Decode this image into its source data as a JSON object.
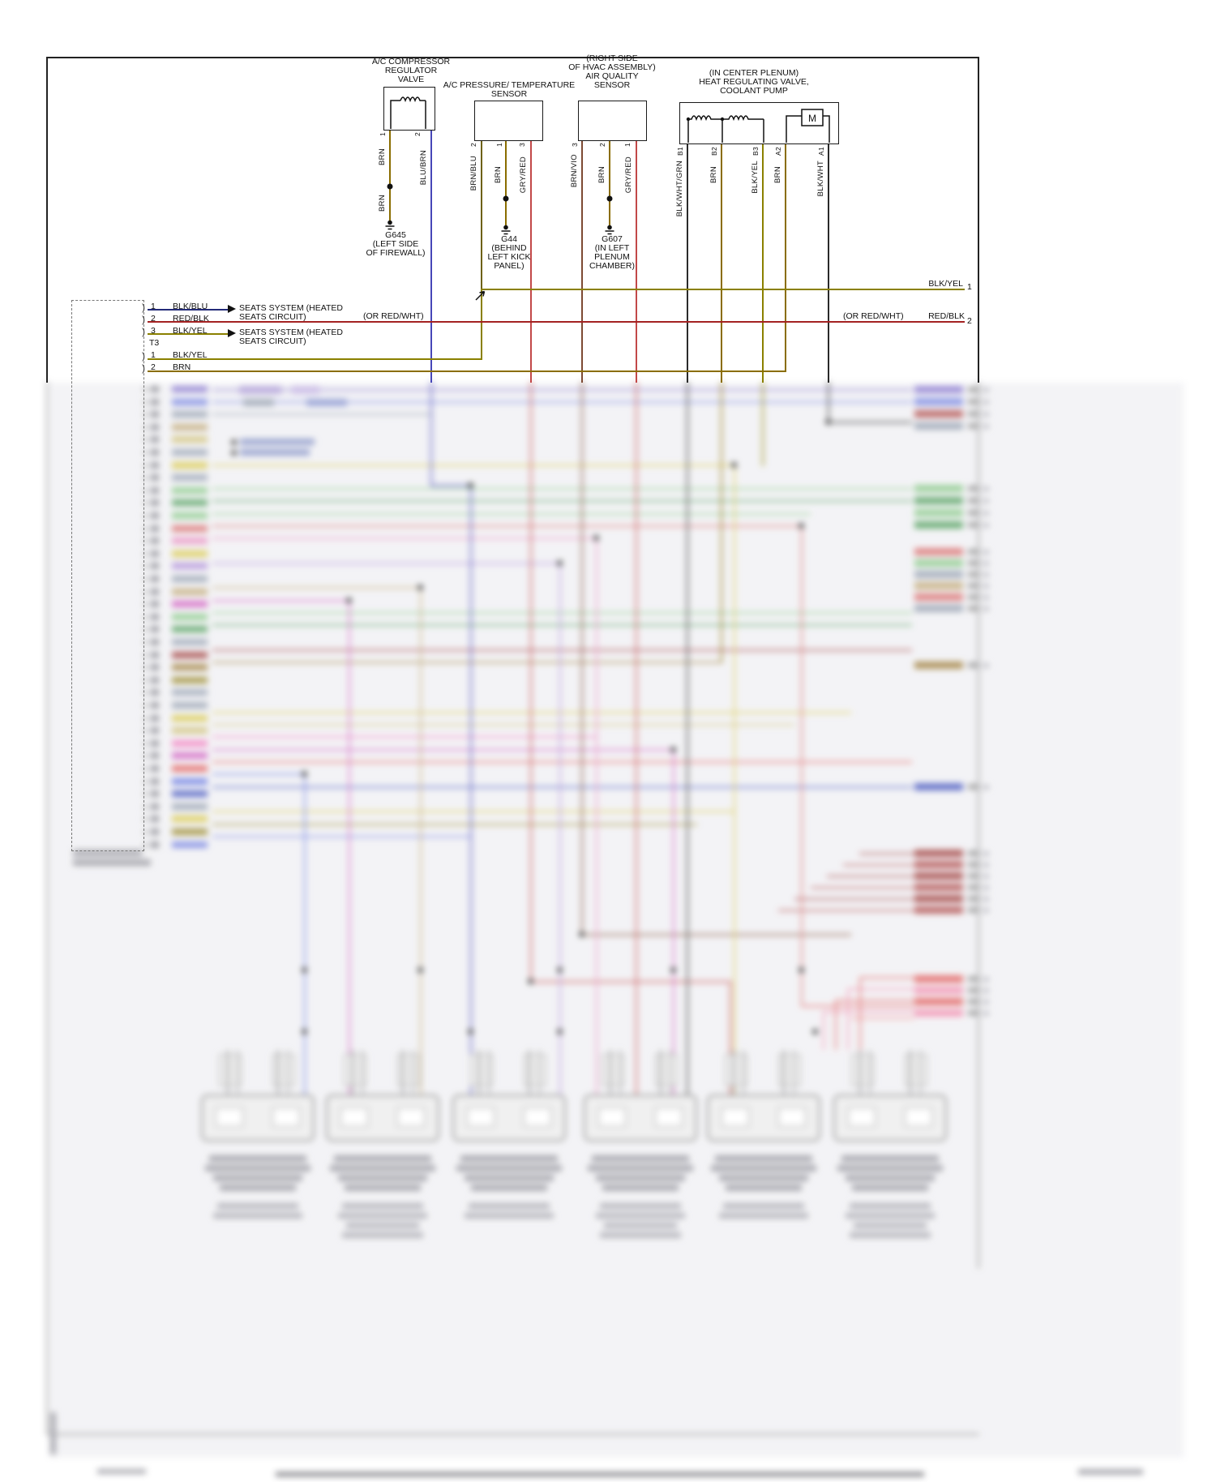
{
  "diagram": {
    "compressor": {
      "title": [
        "A/C COMPRESSOR",
        "REGULATOR",
        "VALVE"
      ],
      "pin1": "1",
      "pin2": "2",
      "wire1": "BRN",
      "wire1b": "BRN",
      "wire2": "BLU/BRN",
      "ground": "G645",
      "ground_loc": [
        "(LEFT SIDE",
        "OF FIREWALL)"
      ]
    },
    "pressure_sensor": {
      "title": [
        "A/C PRESSURE/ TEMPERATURE",
        "SENSOR"
      ],
      "pins": [
        "2",
        "1",
        "3"
      ],
      "wires": [
        "BRN/BLU",
        "BRN",
        "GRY/RED"
      ],
      "ground": "G44",
      "ground_loc": [
        "(BEHIND",
        "LEFT KICK",
        "PANEL)"
      ]
    },
    "air_quality": {
      "title": [
        "(RIGHT SIDE",
        "OF HVAC ASSEMBLY)",
        "AIR QUALITY",
        "SENSOR"
      ],
      "pins": [
        "3",
        "2",
        "1"
      ],
      "wires": [
        "BRN/VIO",
        "BRN",
        "GRY/RED"
      ],
      "ground": "G607",
      "ground_loc": [
        "(IN LEFT",
        "PLENUM",
        "CHAMBER)"
      ]
    },
    "heat_valve": {
      "title": [
        "(IN CENTER PLENUM)",
        "HEAT REGULATING VALVE,",
        "COOLANT PUMP"
      ],
      "pins": [
        "B1",
        "B2",
        "B3",
        "A2",
        "A1"
      ],
      "wires": [
        "BLK/WHT/GRN",
        "BRN",
        "BLK/YEL",
        "BRN",
        "BLK/WHT"
      ],
      "motor": "M"
    },
    "connector": {
      "t_label": "T3",
      "pins": [
        {
          "num": "1",
          "wire": "BLK/BLU"
        },
        {
          "num": "2",
          "wire": "RED/BLK"
        },
        {
          "num": "3",
          "wire": "BLK/YEL"
        },
        {
          "num": "1",
          "wire": "BLK/YEL"
        },
        {
          "num": "2",
          "wire": "BRN"
        }
      ]
    },
    "seats1": [
      "SEATS SYSTEM (HEATED",
      "SEATS CIRCUIT)"
    ],
    "seats2": [
      "SEATS SYSTEM (HEATED",
      "SEATS CIRCUIT)"
    ],
    "or_red_wht_mid": "(OR RED/WHT)",
    "right1": {
      "label": "BLK/YEL",
      "num": "1"
    },
    "right2": {
      "prefix": "(OR RED/WHT)",
      "label": "RED/BLK",
      "num": "2"
    }
  },
  "colors": {
    "brn": "#8a6d00",
    "blk_yel": "#8a8000",
    "blu_brn": "#4747b8",
    "brn_blu": "#6e6212",
    "gry_red": "#c24848",
    "brn_vio": "#7d4a33",
    "red_blk": "#a42222",
    "blk_blu": "#232a78",
    "blk": "#2a2a2a"
  }
}
